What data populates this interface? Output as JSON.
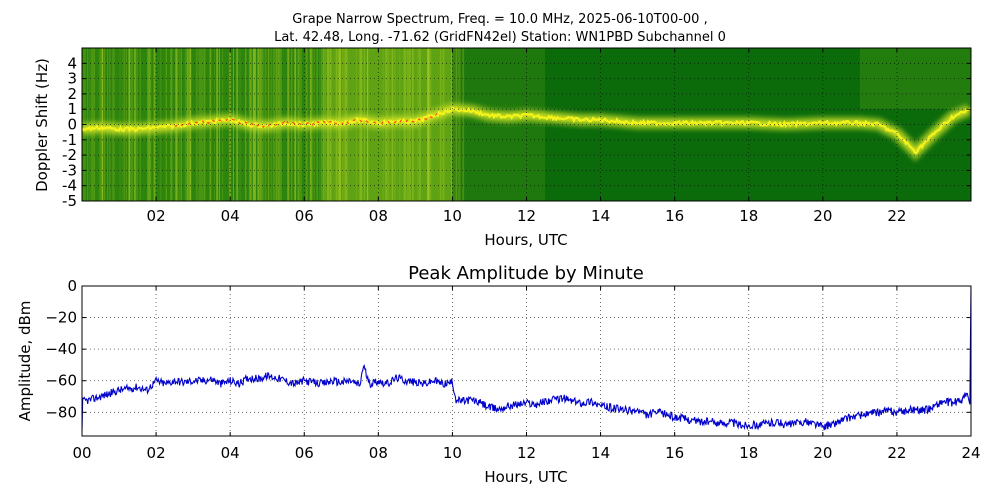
{
  "supertitle": {
    "line1": "Grape Narrow Spectrum, Freq. = 10.0 MHz, 2025-06-10T00-00 ,",
    "line2": "Lat.  42.48, Long. -71.62 (GridFN42el) Station: WN1PBD Subchannel 0"
  },
  "chart_data": [
    {
      "type": "heatmap",
      "title": "",
      "xlabel": "Hours, UTC",
      "ylabel": "Doppler Shift (Hz)",
      "xlim": [
        0,
        24
      ],
      "ylim": [
        -5,
        5
      ],
      "x_ticks": [
        "02",
        "04",
        "06",
        "08",
        "10",
        "12",
        "14",
        "16",
        "18",
        "20",
        "22"
      ],
      "x_tick_values": [
        2,
        4,
        6,
        8,
        10,
        12,
        14,
        16,
        18,
        20,
        22
      ],
      "y_ticks": [
        "4",
        "3",
        "2",
        "1",
        "0",
        "-1",
        "-2",
        "-3",
        "-4",
        "-5"
      ],
      "y_tick_values": [
        4,
        3,
        2,
        1,
        0,
        -1,
        -2,
        -3,
        -4,
        -5
      ],
      "grid": true,
      "colors": {
        "background": "#0b6b0b",
        "mid": "#8fbf14",
        "high": "#f4f41a",
        "peak": "#ff3a1a"
      },
      "trace": {
        "hours": [
          0,
          0.5,
          1,
          1.5,
          2,
          2.5,
          3,
          3.5,
          4,
          4.5,
          5,
          5.5,
          6,
          6.5,
          7,
          7.5,
          8,
          8.5,
          9,
          9.5,
          10,
          10.5,
          11,
          11.5,
          12,
          12.5,
          13,
          13.5,
          14,
          14.5,
          15,
          16,
          17,
          18,
          19,
          20,
          21,
          21.5,
          22,
          22.5,
          23,
          23.5,
          24
        ],
        "doppler_hz": [
          -0.3,
          -0.2,
          -0.3,
          -0.3,
          -0.2,
          -0.1,
          0.1,
          0.2,
          0.3,
          0.0,
          -0.1,
          0.1,
          0.0,
          0.1,
          0.1,
          0.3,
          0.1,
          0.2,
          0.2,
          0.6,
          1.0,
          0.9,
          0.6,
          0.5,
          0.6,
          0.5,
          0.4,
          0.3,
          0.3,
          0.2,
          0.1,
          0.1,
          0.1,
          0.1,
          0.0,
          0.1,
          0.1,
          0.0,
          -0.6,
          -1.8,
          -0.6,
          0.5,
          1.0
        ]
      }
    },
    {
      "type": "line",
      "title": "Peak Amplitude by Minute",
      "xlabel": "Hours, UTC",
      "ylabel": "Amplitude, dBm",
      "xlim": [
        0,
        24
      ],
      "ylim": [
        -95,
        0
      ],
      "x_ticks": [
        "00",
        "02",
        "04",
        "06",
        "08",
        "10",
        "12",
        "14",
        "16",
        "18",
        "20",
        "22",
        "24"
      ],
      "x_tick_values": [
        0,
        2,
        4,
        6,
        8,
        10,
        12,
        14,
        16,
        18,
        20,
        22,
        24
      ],
      "y_ticks": [
        "0",
        "−20",
        "−40",
        "−60",
        "−80"
      ],
      "y_tick_values": [
        0,
        -20,
        -40,
        -60,
        -80
      ],
      "grid": true,
      "line_color": "#0000cc",
      "series": [
        {
          "x": [
            0,
            0.02,
            0.25,
            0.5,
            0.75,
            1.0,
            1.25,
            1.5,
            1.75,
            2.0,
            2.25,
            2.5,
            2.75,
            3.0,
            3.25,
            3.5,
            3.75,
            4.0,
            4.25,
            4.5,
            4.75,
            5.0,
            5.25,
            5.5,
            5.75,
            6.0,
            6.25,
            6.5,
            6.75,
            7.0,
            7.25,
            7.5,
            7.6,
            7.75,
            8.0,
            8.25,
            8.5,
            8.75,
            9.0,
            9.25,
            9.5,
            9.75,
            10.0,
            10.1,
            10.25,
            10.5,
            10.75,
            11.0,
            11.25,
            11.5,
            11.75,
            12.0,
            12.25,
            12.5,
            12.75,
            13.0,
            13.25,
            13.5,
            13.75,
            14.0,
            14.25,
            14.5,
            14.75,
            15.0,
            15.25,
            15.5,
            15.75,
            16.0,
            16.25,
            16.5,
            16.75,
            17.0,
            17.25,
            17.5,
            17.75,
            18.0,
            18.25,
            18.5,
            18.75,
            19.0,
            19.25,
            19.5,
            19.75,
            20.0,
            20.25,
            20.5,
            20.75,
            21.0,
            21.25,
            21.5,
            21.75,
            22.0,
            22.25,
            22.5,
            22.75,
            23.0,
            23.25,
            23.5,
            23.75,
            23.9,
            23.97,
            24.0
          ],
          "y": [
            -92,
            -73,
            -72,
            -70,
            -68,
            -66,
            -65,
            -64,
            -66,
            -60,
            -62,
            -60,
            -61,
            -60,
            -60,
            -59,
            -62,
            -60,
            -62,
            -58,
            -59,
            -57,
            -58,
            -60,
            -62,
            -60,
            -61,
            -62,
            -60,
            -61,
            -60,
            -63,
            -50,
            -62,
            -60,
            -62,
            -58,
            -60,
            -61,
            -62,
            -60,
            -62,
            -61,
            -72,
            -73,
            -72,
            -74,
            -77,
            -78,
            -76,
            -75,
            -74,
            -75,
            -73,
            -72,
            -71,
            -73,
            -74,
            -73,
            -76,
            -77,
            -78,
            -79,
            -79,
            -82,
            -80,
            -81,
            -83,
            -84,
            -85,
            -86,
            -86,
            -87,
            -86,
            -88,
            -88,
            -88,
            -87,
            -86,
            -88,
            -87,
            -86,
            -87,
            -89,
            -88,
            -85,
            -83,
            -82,
            -81,
            -80,
            -79,
            -80,
            -79,
            -78,
            -79,
            -76,
            -73,
            -74,
            -72,
            -68,
            -75,
            0
          ]
        }
      ]
    }
  ]
}
